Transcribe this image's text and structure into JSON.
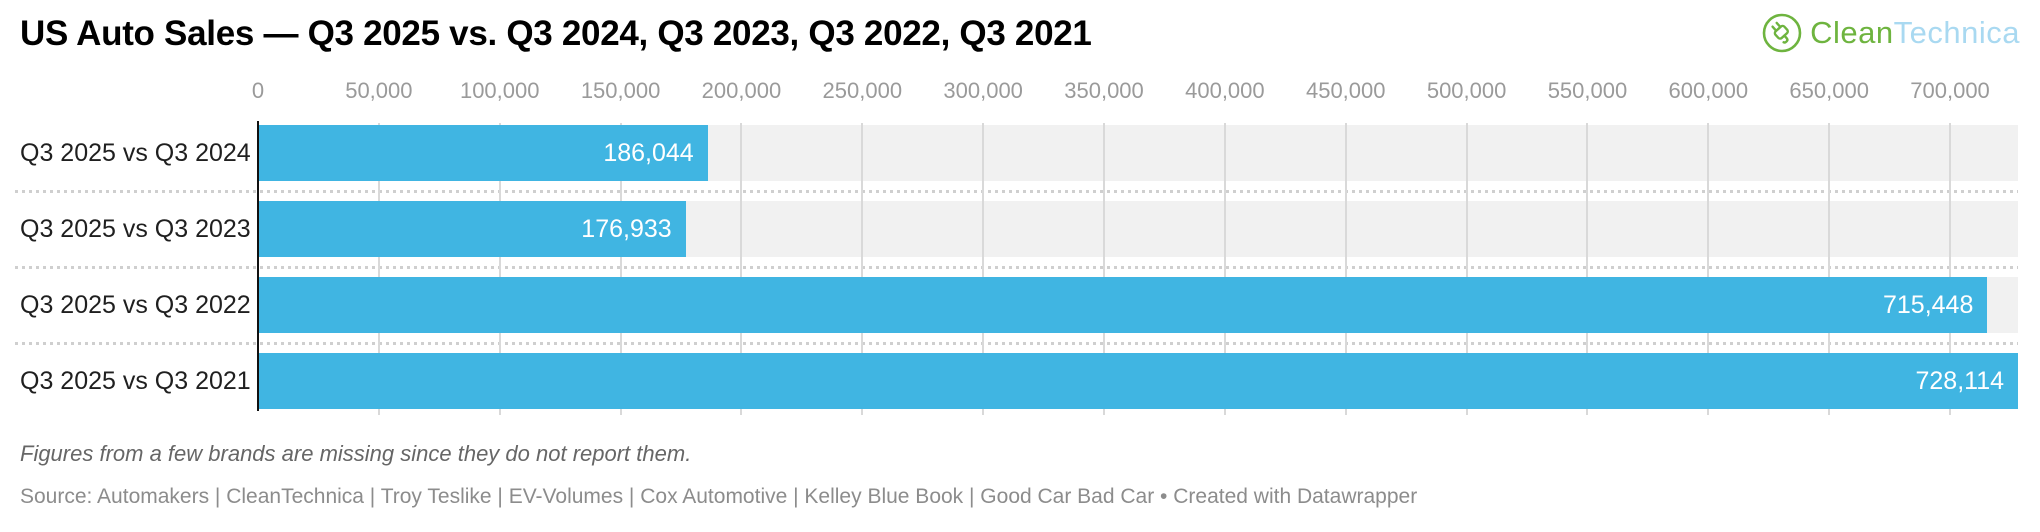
{
  "header": {
    "title": "US Auto Sales — Q3 2025 vs. Q3 2024, Q3 2023, Q3 2022, Q3 2021",
    "logo": {
      "clean": "Clean",
      "technica": "Technica",
      "icon": "cleantechnica-plug-icon",
      "green": "#6eb43f",
      "light_blue": "#a9d9f1"
    }
  },
  "chart_data": {
    "type": "bar",
    "orientation": "horizontal",
    "title": "US Auto Sales — Q3 2025 vs. Q3 2024, Q3 2023, Q3 2022, Q3 2021",
    "categories": [
      "Q3 2025 vs Q3 2024",
      "Q3 2025 vs Q3 2023",
      "Q3 2025 vs Q3 2022",
      "Q3 2025 vs Q3 2021"
    ],
    "values": [
      186044,
      176933,
      715448,
      728114
    ],
    "value_labels": [
      "186,044",
      "176,933",
      "715,448",
      "728,114"
    ],
    "xlabel": "",
    "ylabel": "",
    "xlim": [
      0,
      728114
    ],
    "x_ticks": [
      0,
      50000,
      100000,
      150000,
      200000,
      250000,
      300000,
      350000,
      400000,
      450000,
      500000,
      550000,
      600000,
      650000,
      700000
    ],
    "x_tick_labels": [
      "0",
      "50,000",
      "100,000",
      "150,000",
      "200,000",
      "250,000",
      "300,000",
      "350,000",
      "400,000",
      "450,000",
      "500,000",
      "550,000",
      "600,000",
      "650,000",
      "700,000"
    ],
    "grid": "vertical",
    "legend": "none",
    "bar_color": "#40b5e2",
    "stripe_color": "#f1f1f1",
    "gridline_color": "#d9d9d9",
    "separator_color": "#cfcfcf",
    "axis_line_color": "#111111",
    "tick_label_color": "#9a9a9a",
    "value_label_color": "#ffffff",
    "category_label_color": "#1f1f1f"
  },
  "footer": {
    "note": "Figures from a few brands are missing since they do not report them.",
    "source": "Source: Automakers | CleanTechnica | Troy Teslike | EV-Volumes | Cox Automotive | Kelley Blue Book | Good Car Bad Car • Created with Datawrapper"
  }
}
